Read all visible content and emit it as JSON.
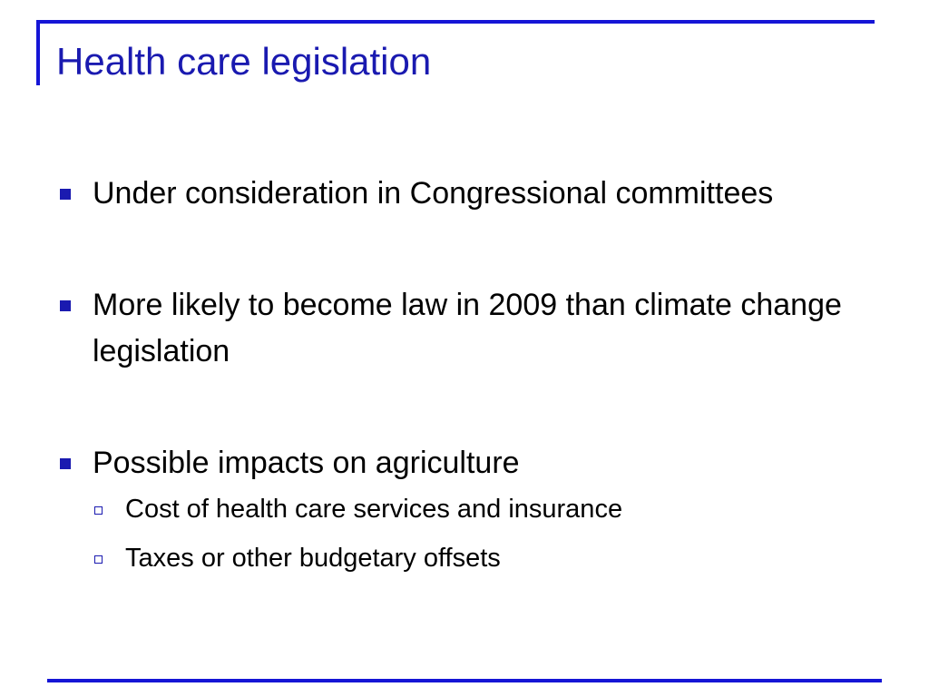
{
  "colors": {
    "accent": "#1515d6",
    "title": "#1a1ab0",
    "text": "#000000"
  },
  "slide": {
    "title": "Health care legislation",
    "bullets": [
      {
        "text": "Under consideration in Congressional committees",
        "marker_icon": "square-bullet-icon",
        "subbullets": []
      },
      {
        "text": "More likely to become law in 2009 than climate change legislation",
        "marker_icon": "square-bullet-icon",
        "subbullets": []
      },
      {
        "text": "Possible impacts on agriculture",
        "marker_icon": "square-bullet-icon",
        "subbullets": [
          {
            "text": "Cost of health care services and insurance",
            "marker_icon": "hollow-square-bullet-icon"
          },
          {
            "text": "Taxes or other budgetary offsets",
            "marker_icon": "hollow-square-bullet-icon"
          }
        ]
      }
    ]
  }
}
